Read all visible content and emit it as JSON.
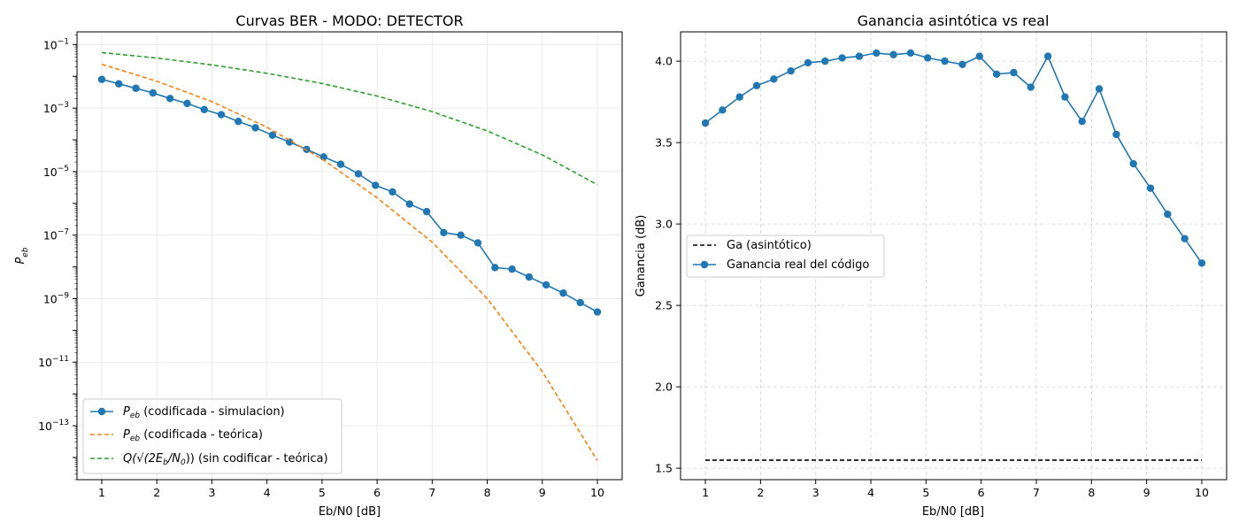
{
  "chart_data": [
    {
      "type": "line",
      "title": "Curvas BER - MODO: DETECTOR",
      "xlabel": "Eb/N0 [dB]",
      "ylabel": "P_eb",
      "xlim": [
        0.55,
        10.45
      ],
      "ylim_log10": [
        -14.7,
        -0.6
      ],
      "y_scale": "log",
      "grid": true,
      "legend_position": "lower-left",
      "x_ticks": [
        1,
        2,
        3,
        4,
        5,
        6,
        7,
        8,
        9,
        10
      ],
      "y_ticks": [
        {
          "value": -1,
          "base": "10",
          "exp": "−1"
        },
        {
          "value": -3,
          "base": "10",
          "exp": "−3"
        },
        {
          "value": -5,
          "base": "10",
          "exp": "−5"
        },
        {
          "value": -7,
          "base": "10",
          "exp": "−7"
        },
        {
          "value": -9,
          "base": "10",
          "exp": "−9"
        },
        {
          "value": -11,
          "base": "10",
          "exp": "−11"
        },
        {
          "value": -13,
          "base": "10",
          "exp": "−13"
        }
      ],
      "series": [
        {
          "name": "P_eb (codificada - simulacion)",
          "legend_main": "P",
          "legend_sub": "eb",
          "legend_rest": " (codificada - simulacion)",
          "style": "solid-marker",
          "color": "#1f77b4",
          "x": [
            1,
            1.31,
            1.62,
            1.93,
            2.24,
            2.55,
            2.86,
            3.17,
            3.48,
            3.79,
            4.1,
            4.41,
            4.72,
            5.03,
            5.34,
            5.66,
            5.97,
            6.28,
            6.59,
            6.9,
            7.21,
            7.52,
            7.83,
            8.14,
            8.45,
            8.76,
            9.07,
            9.38,
            9.69,
            10
          ],
          "y": [
            0.008,
            0.0058,
            0.0042,
            0.003,
            0.002,
            0.0014,
            0.0009,
            0.00062,
            0.00038,
            0.00024,
            0.00014,
            8.5e-05,
            5e-05,
            2.9e-05,
            1.7e-05,
            8.5e-06,
            3.7e-06,
            2.3e-06,
            9.5e-07,
            5.5e-07,
            1.2e-07,
            1e-07,
            5.7e-08,
            9.5e-09,
            8.5e-09,
            4.8e-09,
            2.7e-09,
            1.5e-09,
            7.5e-10,
            3.8e-10
          ]
        },
        {
          "name": "P_eb (codificada - teórica)",
          "legend_main": "P",
          "legend_sub": "eb",
          "legend_rest": " (codificada - teórica)",
          "style": "dashed",
          "color": "#ff7f0e",
          "x": [
            1,
            2,
            3,
            4,
            5,
            6,
            7,
            8,
            9,
            10
          ],
          "y": [
            0.024,
            0.007,
            0.0016,
            0.00025,
            2.5e-05,
            1.5e-06,
            6e-08,
            1e-09,
            5e-12,
            8e-15
          ]
        },
        {
          "name": "Q(√(2E_b/N_0)) (sin codificar - teórica)",
          "legend_main": "Q(√(2E",
          "legend_sub": "b",
          "legend_mid": "/N",
          "legend_sub2": "0",
          "legend_rest": ")) (sin codificar - teórica)",
          "style": "dashed",
          "color": "#2ca02c",
          "x": [
            1,
            2,
            3,
            4,
            5,
            6,
            7,
            8,
            9,
            10
          ],
          "y": [
            0.056,
            0.0375,
            0.0229,
            0.0125,
            0.00595,
            0.00239,
            0.000773,
            0.000191,
            3.36e-05,
            3.87e-06
          ]
        }
      ]
    },
    {
      "type": "line",
      "title": "Ganancia asintótica vs real",
      "xlabel": "Eb/N0 [dB]",
      "ylabel": "Ganancia (dB)",
      "xlim": [
        0.55,
        10.45
      ],
      "ylim": [
        1.43,
        4.18
      ],
      "grid": true,
      "grid_style": "dashed",
      "legend_position": "center-left",
      "x_ticks": [
        1,
        2,
        3,
        4,
        5,
        6,
        7,
        8,
        9,
        10
      ],
      "y_ticks": [
        "1.5",
        "2.0",
        "2.5",
        "3.0",
        "3.5",
        "4.0"
      ],
      "series": [
        {
          "name": "Ga (asintótico)",
          "style": "dashed",
          "color": "#000000",
          "x": [
            1,
            10
          ],
          "y": [
            1.55,
            1.55
          ]
        },
        {
          "name": "Ganancia real del código",
          "style": "solid-marker",
          "color": "#1f77b4",
          "x": [
            1,
            1.31,
            1.62,
            1.93,
            2.24,
            2.55,
            2.86,
            3.17,
            3.48,
            3.79,
            4.1,
            4.41,
            4.72,
            5.03,
            5.34,
            5.66,
            5.97,
            6.28,
            6.59,
            6.9,
            7.21,
            7.52,
            7.83,
            8.14,
            8.45,
            8.76,
            9.07,
            9.38,
            9.69,
            10
          ],
          "y": [
            3.62,
            3.7,
            3.78,
            3.85,
            3.89,
            3.94,
            3.99,
            4.0,
            4.02,
            4.03,
            4.05,
            4.04,
            4.05,
            4.02,
            4.0,
            3.98,
            4.03,
            3.92,
            3.93,
            3.84,
            4.03,
            3.78,
            3.63,
            3.83,
            3.55,
            3.37,
            3.22,
            3.06,
            2.91,
            2.76
          ]
        }
      ]
    }
  ]
}
